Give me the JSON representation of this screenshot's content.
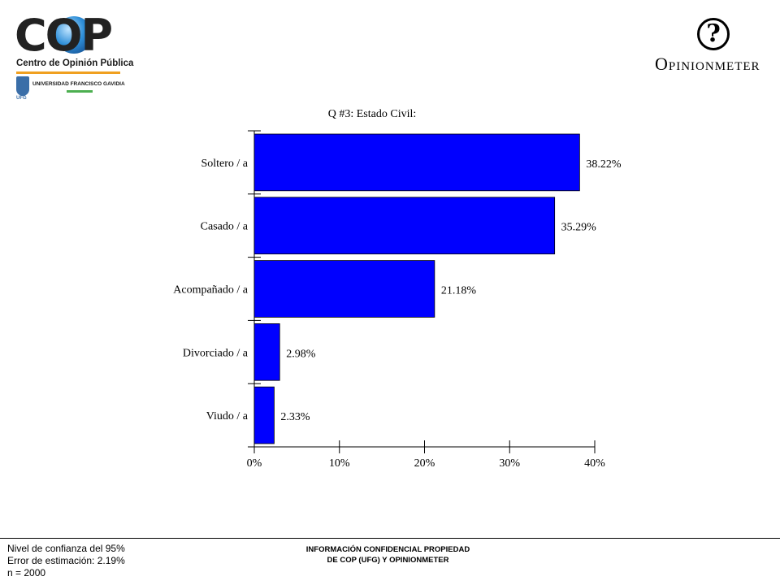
{
  "logos": {
    "cop_wordmark": "COP",
    "cop_subtitle": "Centro de Opinión Pública",
    "ufg_name": "UNIVERSIDAD FRANCISCO GAVIDIA",
    "ufg_abbr": "UFG",
    "opinionmeter_icon": "?",
    "opinionmeter_text": "Opinionmeter"
  },
  "chart_data": {
    "type": "bar",
    "orientation": "horizontal",
    "title": "Q #3: Estado Civil:",
    "categories": [
      "Soltero / a",
      "Casado / a",
      "Acompañado / a",
      "Divorciado / a",
      "Viudo / a"
    ],
    "values": [
      38.22,
      35.29,
      21.18,
      2.98,
      2.33
    ],
    "value_labels": [
      "38.22%",
      "35.29%",
      "21.18%",
      "2.98%",
      "2.33%"
    ],
    "xlim": [
      0,
      40
    ],
    "xticks": [
      "0%",
      "10%",
      "20%",
      "30%",
      "40%"
    ],
    "bar_color": "#0000ff",
    "grid": false
  },
  "footer": {
    "left_lines": [
      "Nivel de confianza del 95%",
      "Error de estimación: 2.19%",
      "n = 2000"
    ],
    "center_lines": [
      "INFORMACIÓN CONFIDENCIAL PROPIEDAD",
      "DE COP (UFG) Y OPINIONMETER"
    ]
  }
}
